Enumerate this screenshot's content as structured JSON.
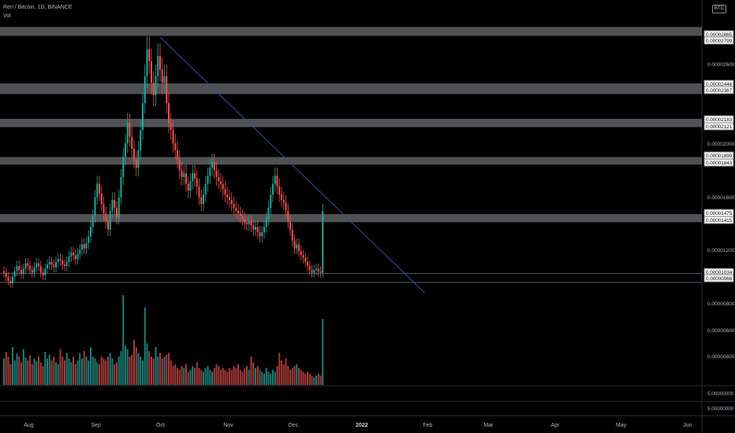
{
  "header": {
    "symbol_line": "Ren / Bitcoin, 1D, BINANCE",
    "indicator": "Vol",
    "currency_badge": "BTC"
  },
  "chart_data": {
    "type": "candlestick",
    "title": "Ren / Bitcoin, 1D, BINANCE",
    "x_ticks": [
      "Aug",
      "Sep",
      "Oct",
      "Nov",
      "Dec",
      "2022",
      "Feb",
      "Mar",
      "Apr",
      "May",
      "Jun"
    ],
    "price_ticks": [
      "0.00002600",
      "0.00002000",
      "0.00001600",
      "0.00001200",
      "0.00000800",
      "0.00000600",
      "0.00000400"
    ],
    "price_range": [
      8.9e-06,
      2.89e-05
    ],
    "zones": [
      {
        "top": "0.00002865",
        "bottom": "0.00002799"
      },
      {
        "top": "0.00002446",
        "bottom": "0.00002367"
      },
      {
        "top": "0.00002183",
        "bottom": "0.00002121"
      },
      {
        "top": "0.00001899",
        "bottom": "0.00001843"
      },
      {
        "top": "0.00001475",
        "bottom": "0.00001415"
      }
    ],
    "horizontal_lines": [
      "0.00001034",
      "0.00000968"
    ],
    "trendline": {
      "from": {
        "date": "2021-10-01",
        "price": 2.79e-05
      },
      "to": {
        "date": "2022-01-31",
        "price": 8.9e-06
      }
    },
    "closes": [
      1.04e-05,
      1.01e-05,
      9.8e-06,
      9.6e-06,
      1.01e-05,
      1.05e-05,
      1.09e-05,
      1.06e-05,
      1.03e-05,
      1.07e-05,
      1.11e-05,
      1.09e-05,
      1.06e-05,
      1.04e-05,
      1.08e-05,
      1.11e-05,
      1.09e-05,
      1.04e-05,
      1.02e-05,
      1.07e-05,
      1.1e-05,
      1.12e-05,
      1.1e-05,
      1.08e-05,
      1.12e-05,
      1.14e-05,
      1.13e-05,
      1.1e-05,
      1.09e-05,
      1.12e-05,
      1.16e-05,
      1.19e-05,
      1.17e-05,
      1.14e-05,
      1.18e-05,
      1.21e-05,
      1.25e-05,
      1.22e-05,
      1.26e-05,
      1.31e-05,
      1.38e-05,
      1.46e-05,
      1.6e-05,
      1.7e-05,
      1.63e-05,
      1.55e-05,
      1.48e-05,
      1.42e-05,
      1.36e-05,
      1.5e-05,
      1.58e-05,
      1.52e-05,
      1.45e-05,
      1.6e-05,
      1.75e-05,
      1.9e-05,
      2e-05,
      2.15e-05,
      2.05e-05,
      1.96e-05,
      1.88e-05,
      1.82e-05,
      1.95e-05,
      2.1e-05,
      2.3e-05,
      2.5e-05,
      2.7e-05,
      2.61e-05,
      2.45e-05,
      2.36e-05,
      2.5e-05,
      2.65e-05,
      2.55e-05,
      2.45e-05,
      2.5e-05,
      2.3e-05,
      2.15e-05,
      2.1e-05,
      2e-05,
      1.95e-05,
      1.88e-05,
      1.8e-05,
      1.75e-05,
      1.78e-05,
      1.7e-05,
      1.65e-05,
      1.72e-05,
      1.78e-05,
      1.74e-05,
      1.68e-05,
      1.6e-05,
      1.55e-05,
      1.62e-05,
      1.7e-05,
      1.76e-05,
      1.82e-05,
      1.86e-05,
      1.8e-05,
      1.75e-05,
      1.72e-05,
      1.7e-05,
      1.66e-05,
      1.62e-05,
      1.6e-05,
      1.58e-05,
      1.55e-05,
      1.52e-05,
      1.5e-05,
      1.48e-05,
      1.46e-05,
      1.44e-05,
      1.41e-05,
      1.4e-05,
      1.42e-05,
      1.39e-05,
      1.36e-05,
      1.38e-05,
      1.34e-05,
      1.31e-05,
      1.34e-05,
      1.38e-05,
      1.44e-05,
      1.52e-05,
      1.62e-05,
      1.7e-05,
      1.76e-05,
      1.68e-05,
      1.62e-05,
      1.58e-05,
      1.56e-05,
      1.5e-05,
      1.42e-05,
      1.36e-05,
      1.28e-05,
      1.22e-05,
      1.25e-05,
      1.2e-05,
      1.17e-05,
      1.15e-05,
      1.12e-05,
      1.09e-05,
      1.06e-05,
      1.04e-05,
      1.06e-05,
      1.07e-05,
      1.05e-05,
      1.04e-05,
      1.5e-05
    ],
    "volumes": [
      28,
      35,
      30,
      22,
      40,
      26,
      33,
      30,
      24,
      38,
      29,
      26,
      31,
      22,
      28,
      25,
      30,
      24,
      20,
      35,
      28,
      32,
      26,
      30,
      24,
      22,
      38,
      30,
      26,
      34,
      28,
      24,
      30,
      22,
      26,
      34,
      28,
      36,
      30,
      26,
      40,
      30,
      28,
      24,
      22,
      30,
      28,
      26,
      30,
      34,
      28,
      22,
      24,
      30,
      36,
      95,
      42,
      38,
      30,
      32,
      48,
      40,
      34,
      30,
      26,
      82,
      44,
      36,
      30,
      28,
      40,
      30,
      34,
      28,
      30,
      32,
      34,
      26,
      20,
      22,
      18,
      16,
      20,
      18,
      22,
      14,
      16,
      20,
      18,
      24,
      18,
      16,
      14,
      18,
      20,
      16,
      14,
      18,
      22,
      20,
      16,
      18,
      16,
      14,
      18,
      16,
      20,
      18,
      22,
      16,
      14,
      18,
      20,
      16,
      30,
      24,
      18,
      20,
      16,
      14,
      12,
      18,
      14,
      12,
      16,
      14,
      20,
      34,
      26,
      22,
      28,
      20,
      16,
      18,
      20,
      22,
      18,
      16,
      14,
      12,
      14,
      12,
      10,
      8,
      10,
      12,
      10,
      70
    ]
  }
}
